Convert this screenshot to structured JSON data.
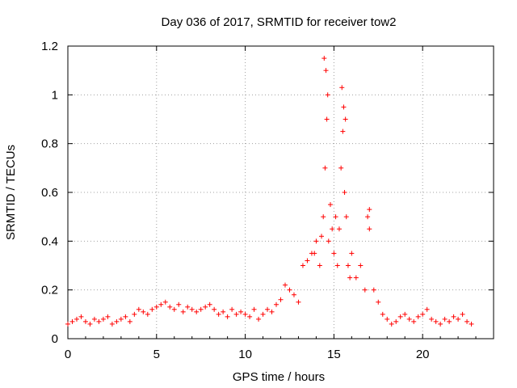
{
  "chart_data": {
    "type": "scatter",
    "title": "Day 036 of 2017, SRMTID for receiver tow2",
    "xlabel": "GPS time / hours",
    "ylabel": "SRMTID / TECUs",
    "xlim": [
      0,
      24
    ],
    "ylim": [
      0,
      1.2
    ],
    "xticks": [
      0,
      5,
      10,
      15,
      20
    ],
    "xtick_labels": [
      "0",
      "5",
      "10",
      "15",
      "20"
    ],
    "yticks": [
      0,
      0.2,
      0.4,
      0.6,
      0.8,
      1,
      1.2
    ],
    "ytick_labels": [
      "0",
      "0.2",
      "0.4",
      "0.6",
      "0.8",
      "1",
      "1.2"
    ],
    "grid": true,
    "marker": "+",
    "series": [
      {
        "name": "SRMTID",
        "color": "#ff0000",
        "x": [
          0.0,
          0.25,
          0.5,
          0.75,
          1.0,
          1.25,
          1.5,
          1.75,
          2.0,
          2.25,
          2.5,
          2.75,
          3.0,
          3.25,
          3.5,
          3.75,
          4.0,
          4.25,
          4.5,
          4.75,
          5.0,
          5.25,
          5.5,
          5.75,
          6.0,
          6.25,
          6.5,
          6.75,
          7.0,
          7.25,
          7.5,
          7.75,
          8.0,
          8.25,
          8.5,
          8.75,
          9.0,
          9.25,
          9.5,
          9.75,
          10.0,
          10.25,
          10.5,
          10.75,
          11.0,
          11.25,
          11.5,
          11.75,
          12.0,
          12.25,
          12.5,
          12.75,
          13.0,
          13.25,
          13.5,
          13.75,
          14.0,
          14.2,
          14.4,
          14.5,
          14.6,
          14.7,
          14.8,
          14.9,
          15.0,
          15.1,
          15.2,
          15.3,
          15.4,
          15.5,
          15.6,
          15.7,
          15.8,
          15.9,
          16.0,
          16.25,
          16.5,
          16.75,
          17.0,
          17.25,
          17.5,
          17.75,
          18.0,
          18.25,
          18.5,
          18.75,
          19.0,
          19.25,
          19.5,
          19.75,
          20.0,
          20.25,
          20.5,
          20.75,
          21.0,
          21.25,
          21.5,
          21.75,
          22.0,
          22.25,
          22.5,
          22.75,
          14.45,
          14.55,
          14.65,
          15.45,
          15.55,
          15.65,
          13.9,
          14.3,
          16.9,
          17.0
        ],
        "y": [
          0.06,
          0.07,
          0.08,
          0.09,
          0.07,
          0.06,
          0.08,
          0.07,
          0.08,
          0.09,
          0.06,
          0.07,
          0.08,
          0.09,
          0.07,
          0.1,
          0.12,
          0.11,
          0.1,
          0.12,
          0.13,
          0.14,
          0.15,
          0.13,
          0.12,
          0.14,
          0.11,
          0.13,
          0.12,
          0.11,
          0.12,
          0.13,
          0.14,
          0.12,
          0.1,
          0.11,
          0.09,
          0.12,
          0.1,
          0.11,
          0.1,
          0.09,
          0.12,
          0.08,
          0.1,
          0.12,
          0.11,
          0.14,
          0.16,
          0.22,
          0.2,
          0.18,
          0.15,
          0.3,
          0.32,
          0.35,
          0.4,
          0.3,
          0.5,
          0.7,
          0.9,
          0.4,
          0.55,
          0.45,
          0.35,
          0.5,
          0.3,
          0.45,
          0.7,
          0.85,
          0.6,
          0.5,
          0.3,
          0.25,
          0.35,
          0.25,
          0.3,
          0.2,
          0.45,
          0.2,
          0.15,
          0.1,
          0.08,
          0.06,
          0.07,
          0.09,
          0.1,
          0.08,
          0.07,
          0.09,
          0.1,
          0.12,
          0.08,
          0.07,
          0.06,
          0.08,
          0.07,
          0.09,
          0.08,
          0.1,
          0.07,
          0.06,
          1.15,
          1.1,
          1.0,
          1.03,
          0.95,
          0.9,
          0.35,
          0.42,
          0.5,
          0.53
        ]
      }
    ]
  }
}
